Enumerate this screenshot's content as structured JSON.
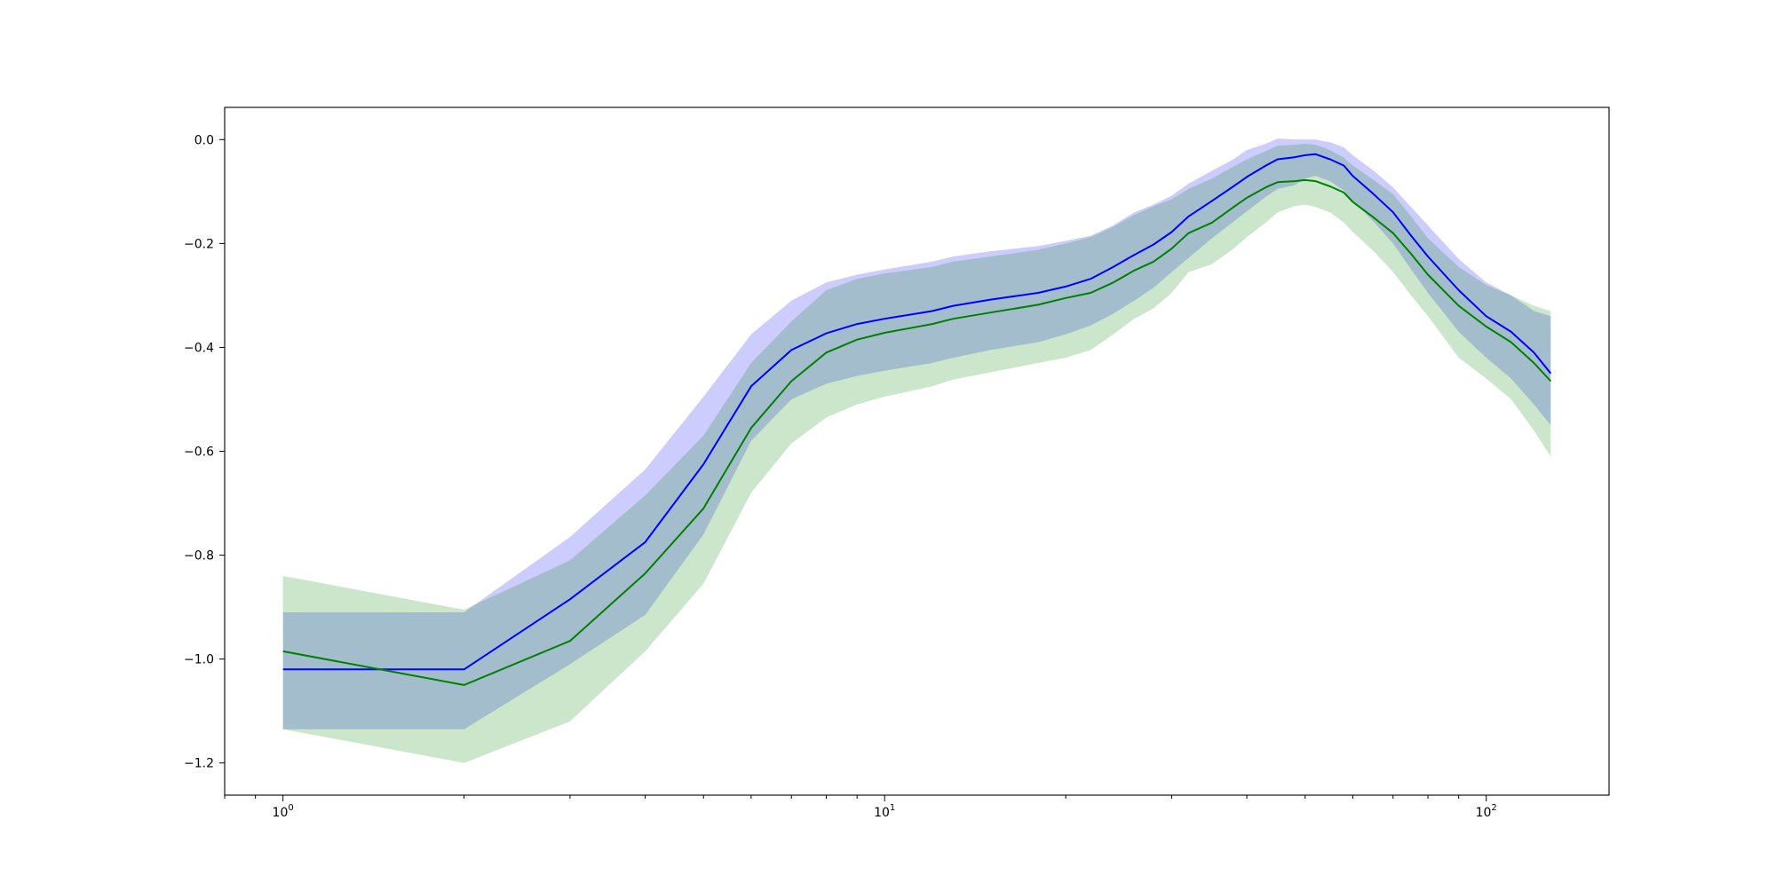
{
  "chart_data": {
    "type": "area",
    "title": "",
    "xlabel": "",
    "ylabel": "",
    "xscale": "log",
    "xlim": [
      0.8,
      160
    ],
    "ylim": [
      -1.262,
      0.062
    ],
    "grid": false,
    "legend": "none",
    "x_major_ticks": [
      {
        "value": 1,
        "base": "10",
        "exp": "0"
      },
      {
        "value": 10,
        "base": "10",
        "exp": "1"
      },
      {
        "value": 100,
        "base": "10",
        "exp": "2"
      }
    ],
    "x_minor_ticks": [
      0.8,
      0.9,
      2,
      3,
      4,
      5,
      6,
      7,
      8,
      9,
      20,
      30,
      40,
      50,
      60,
      70,
      80,
      90
    ],
    "y_ticks": [
      {
        "value": 0.0,
        "label": "0.0"
      },
      {
        "value": -0.2,
        "label": "−0.2"
      },
      {
        "value": -0.4,
        "label": "−0.4"
      },
      {
        "value": -0.6,
        "label": "−0.6"
      },
      {
        "value": -0.8,
        "label": "−0.8"
      },
      {
        "value": -1.0,
        "label": "−1.0"
      },
      {
        "value": -1.2,
        "label": "−1.2"
      }
    ],
    "series": [
      {
        "color": "#0000ff",
        "band_color": "#0000ff",
        "band_opacity": 0.2,
        "x": [
          1,
          2,
          3,
          4,
          5,
          6,
          7,
          8,
          9,
          10,
          12,
          13,
          15,
          18,
          20,
          22,
          24,
          26,
          28,
          30,
          32,
          35,
          38,
          40,
          43,
          45,
          48,
          50,
          52,
          55,
          58,
          60,
          65,
          70,
          75,
          80,
          90,
          100,
          110,
          120,
          128
        ],
        "mean": [
          -1.02,
          -1.02,
          -0.885,
          -0.775,
          -0.625,
          -0.475,
          -0.405,
          -0.373,
          -0.355,
          -0.345,
          -0.33,
          -0.32,
          -0.308,
          -0.295,
          -0.283,
          -0.268,
          -0.245,
          -0.222,
          -0.202,
          -0.178,
          -0.148,
          -0.118,
          -0.09,
          -0.072,
          -0.05,
          -0.038,
          -0.034,
          -0.03,
          -0.028,
          -0.038,
          -0.05,
          -0.07,
          -0.105,
          -0.14,
          -0.185,
          -0.225,
          -0.29,
          -0.34,
          -0.37,
          -0.41,
          -0.45
        ],
        "upper": [
          -0.91,
          -0.91,
          -0.765,
          -0.635,
          -0.495,
          -0.375,
          -0.31,
          -0.275,
          -0.26,
          -0.25,
          -0.235,
          -0.225,
          -0.215,
          -0.205,
          -0.195,
          -0.185,
          -0.165,
          -0.14,
          -0.125,
          -0.108,
          -0.085,
          -0.06,
          -0.038,
          -0.02,
          -0.008,
          0.002,
          0.0,
          0.0,
          0.0,
          -0.005,
          -0.015,
          -0.03,
          -0.06,
          -0.092,
          -0.13,
          -0.165,
          -0.23,
          -0.275,
          -0.3,
          -0.33,
          -0.34
        ],
        "lower": [
          -1.135,
          -1.135,
          -1.01,
          -0.915,
          -0.76,
          -0.58,
          -0.5,
          -0.47,
          -0.455,
          -0.445,
          -0.43,
          -0.42,
          -0.405,
          -0.39,
          -0.375,
          -0.358,
          -0.335,
          -0.31,
          -0.285,
          -0.255,
          -0.228,
          -0.19,
          -0.158,
          -0.138,
          -0.11,
          -0.095,
          -0.088,
          -0.075,
          -0.07,
          -0.08,
          -0.098,
          -0.118,
          -0.158,
          -0.2,
          -0.25,
          -0.295,
          -0.37,
          -0.42,
          -0.46,
          -0.51,
          -0.55
        ]
      },
      {
        "color": "#008000",
        "band_color": "#008000",
        "band_opacity": 0.2,
        "x": [
          1,
          2,
          3,
          4,
          5,
          6,
          7,
          8,
          9,
          10,
          12,
          13,
          15,
          18,
          20,
          22,
          24,
          26,
          28,
          30,
          32,
          35,
          38,
          40,
          43,
          45,
          48,
          50,
          52,
          55,
          58,
          60,
          65,
          70,
          75,
          80,
          90,
          100,
          110,
          120,
          128
        ],
        "mean": [
          -0.985,
          -1.05,
          -0.965,
          -0.835,
          -0.71,
          -0.555,
          -0.465,
          -0.41,
          -0.385,
          -0.372,
          -0.355,
          -0.345,
          -0.333,
          -0.318,
          -0.305,
          -0.295,
          -0.275,
          -0.252,
          -0.235,
          -0.21,
          -0.18,
          -0.16,
          -0.13,
          -0.112,
          -0.092,
          -0.082,
          -0.08,
          -0.078,
          -0.08,
          -0.09,
          -0.102,
          -0.12,
          -0.15,
          -0.18,
          -0.22,
          -0.26,
          -0.32,
          -0.36,
          -0.39,
          -0.43,
          -0.465
        ],
        "upper": [
          -0.84,
          -0.905,
          -0.81,
          -0.685,
          -0.57,
          -0.43,
          -0.35,
          -0.29,
          -0.268,
          -0.258,
          -0.245,
          -0.235,
          -0.225,
          -0.212,
          -0.2,
          -0.188,
          -0.168,
          -0.145,
          -0.128,
          -0.115,
          -0.095,
          -0.075,
          -0.052,
          -0.038,
          -0.022,
          -0.012,
          -0.01,
          -0.008,
          -0.01,
          -0.02,
          -0.035,
          -0.05,
          -0.078,
          -0.105,
          -0.148,
          -0.19,
          -0.245,
          -0.28,
          -0.3,
          -0.32,
          -0.33
        ],
        "lower": [
          -1.135,
          -1.2,
          -1.12,
          -0.985,
          -0.855,
          -0.68,
          -0.585,
          -0.535,
          -0.51,
          -0.495,
          -0.475,
          -0.462,
          -0.448,
          -0.43,
          -0.42,
          -0.405,
          -0.375,
          -0.345,
          -0.325,
          -0.295,
          -0.255,
          -0.24,
          -0.21,
          -0.188,
          -0.16,
          -0.14,
          -0.128,
          -0.125,
          -0.13,
          -0.14,
          -0.16,
          -0.178,
          -0.215,
          -0.255,
          -0.3,
          -0.34,
          -0.42,
          -0.46,
          -0.5,
          -0.56,
          -0.61
        ]
      }
    ]
  }
}
